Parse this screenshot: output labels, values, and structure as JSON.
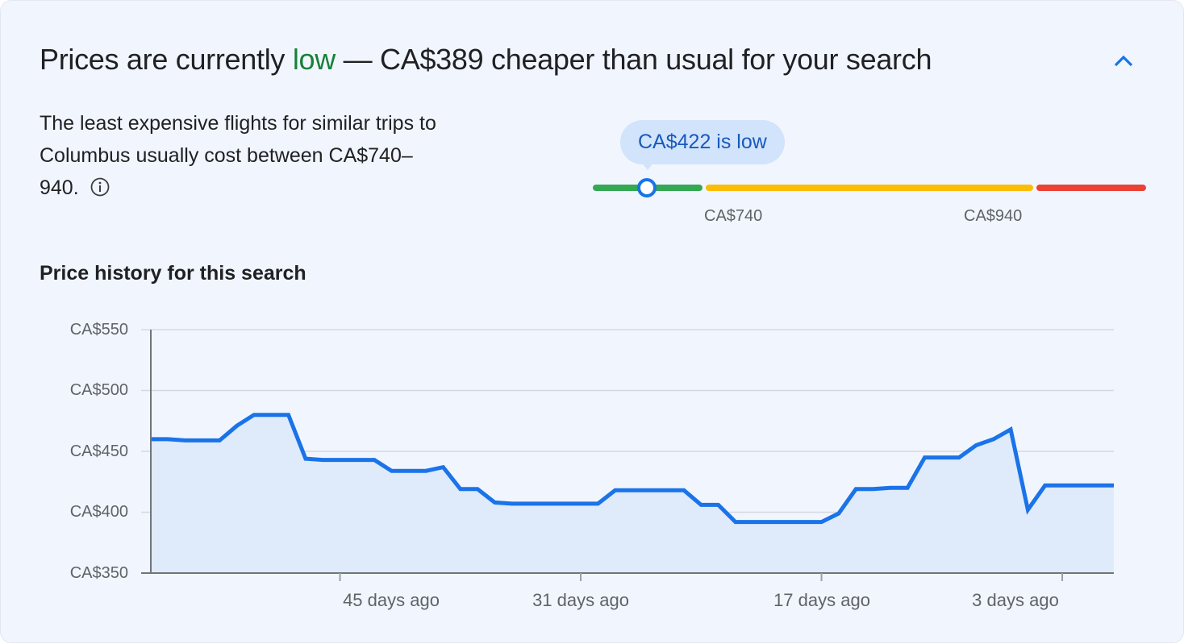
{
  "header": {
    "title_prefix": "Prices are currently ",
    "title_status": "low",
    "title_suffix": " — CA$389 cheaper than usual for your search",
    "status_color": "#188038",
    "collapse_icon": "chevron-up-icon"
  },
  "summary": {
    "description": "The least expensive flights for similar trips to Columbus usually cost between CA$740–940.",
    "info_icon": "info-icon"
  },
  "price_range": {
    "bubble_label": "CA$422 is low",
    "current_price": 422,
    "low_threshold_label": "CA$740",
    "high_threshold_label": "CA$940",
    "segments": [
      {
        "name": "low",
        "color": "#34a853"
      },
      {
        "name": "typical",
        "color": "#fbbc04"
      },
      {
        "name": "high",
        "color": "#ea4335"
      }
    ],
    "marker_color": "#1a73e8"
  },
  "price_history": {
    "title": "Price history for this search"
  },
  "chart_data": {
    "type": "area",
    "title": "Price history for this search",
    "xlabel": "",
    "ylabel": "",
    "ylim": [
      350,
      550
    ],
    "y_ticks": [
      "CA$550",
      "CA$500",
      "CA$450",
      "CA$400",
      "CA$350"
    ],
    "y_tick_values": [
      550,
      500,
      450,
      400,
      350
    ],
    "x_ticks": [
      "45 days ago",
      "31 days ago",
      "17 days ago",
      "3 days ago"
    ],
    "x_tick_days_ago": [
      45,
      31,
      17,
      3
    ],
    "grid": true,
    "legend": null,
    "line_color": "#1a73e8",
    "fill_color": "#dfeafb",
    "x_days_ago": [
      56,
      55,
      54,
      53,
      52,
      51,
      50,
      49,
      48,
      47,
      46,
      45,
      44,
      43,
      42,
      41,
      40,
      39,
      38,
      37,
      36,
      35,
      34,
      33,
      32,
      31,
      30,
      29,
      28,
      27,
      26,
      25,
      24,
      23,
      22,
      21,
      20,
      19,
      18,
      17,
      16,
      15,
      14,
      13,
      12,
      11,
      10,
      9,
      8,
      7,
      6,
      5,
      4,
      3,
      2,
      1,
      0
    ],
    "series": [
      {
        "name": "Price (CA$)",
        "values": [
          460,
          460,
          459,
          459,
          459,
          471,
          480,
          480,
          480,
          444,
          443,
          443,
          443,
          443,
          434,
          434,
          434,
          437,
          419,
          419,
          408,
          407,
          407,
          407,
          407,
          407,
          407,
          418,
          418,
          418,
          418,
          418,
          406,
          406,
          392,
          392,
          392,
          392,
          392,
          392,
          399,
          419,
          419,
          420,
          420,
          445,
          445,
          445,
          455,
          460,
          468,
          402,
          422,
          422,
          422,
          422,
          422
        ]
      }
    ]
  }
}
